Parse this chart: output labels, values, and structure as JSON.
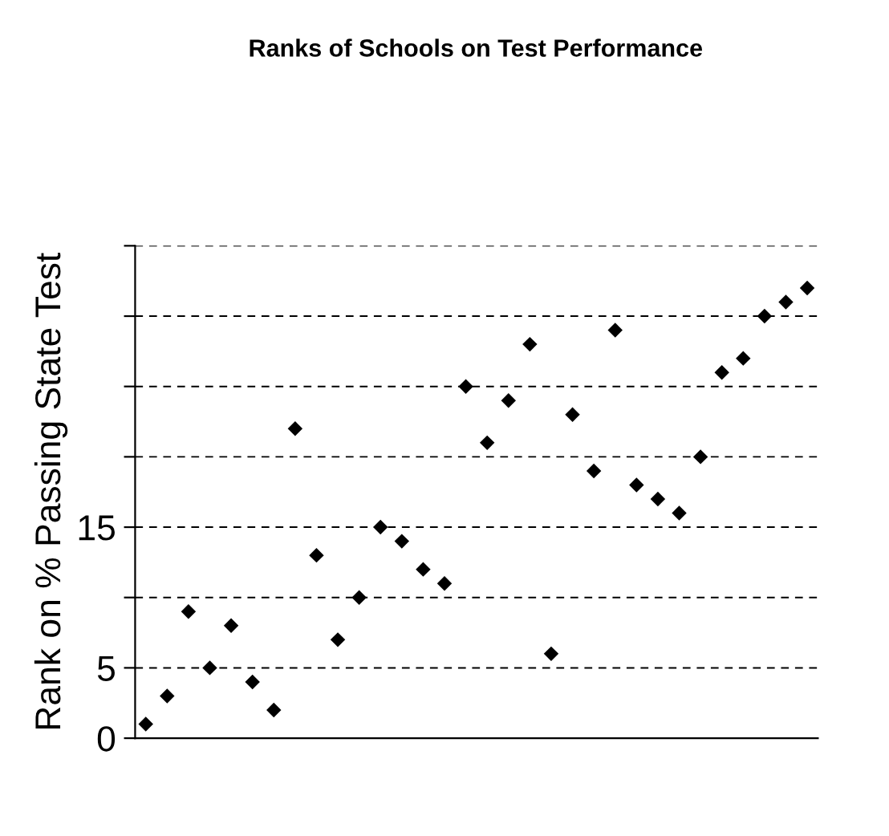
{
  "chart_data": {
    "type": "scatter",
    "title": "Ranks of Schools on Test Performance",
    "ylabel": "Rank on % Passing State Test",
    "categories": [
      null,
      null,
      null,
      null,
      null,
      null,
      null,
      null,
      null,
      null,
      null,
      null,
      null,
      null,
      null,
      null,
      null,
      null,
      null,
      null,
      null,
      null,
      null,
      null,
      null,
      null,
      null,
      null,
      null,
      null,
      null,
      null
    ],
    "series": [
      {
        "color": "#000000",
        "values": [
          1,
          3,
          9,
          5,
          8,
          4,
          2,
          22,
          13,
          7,
          10,
          15,
          14,
          12,
          11,
          25,
          21,
          24,
          28,
          6,
          23,
          19,
          29,
          18,
          17,
          16,
          20,
          26,
          27,
          30,
          31,
          32
        ]
      }
    ],
    "ylim": [
      0,
      35
    ],
    "yticks": [
      0,
      5,
      {
        "value": 10,
        "label": null
      },
      15,
      {
        "value": 20,
        "label": null
      },
      {
        "value": 25,
        "label": null
      },
      {
        "value": 30,
        "label": null
      },
      {
        "value": 35,
        "label": null
      }
    ],
    "grid": "y",
    "marker": "diamond",
    "tick_labels": "y"
  }
}
